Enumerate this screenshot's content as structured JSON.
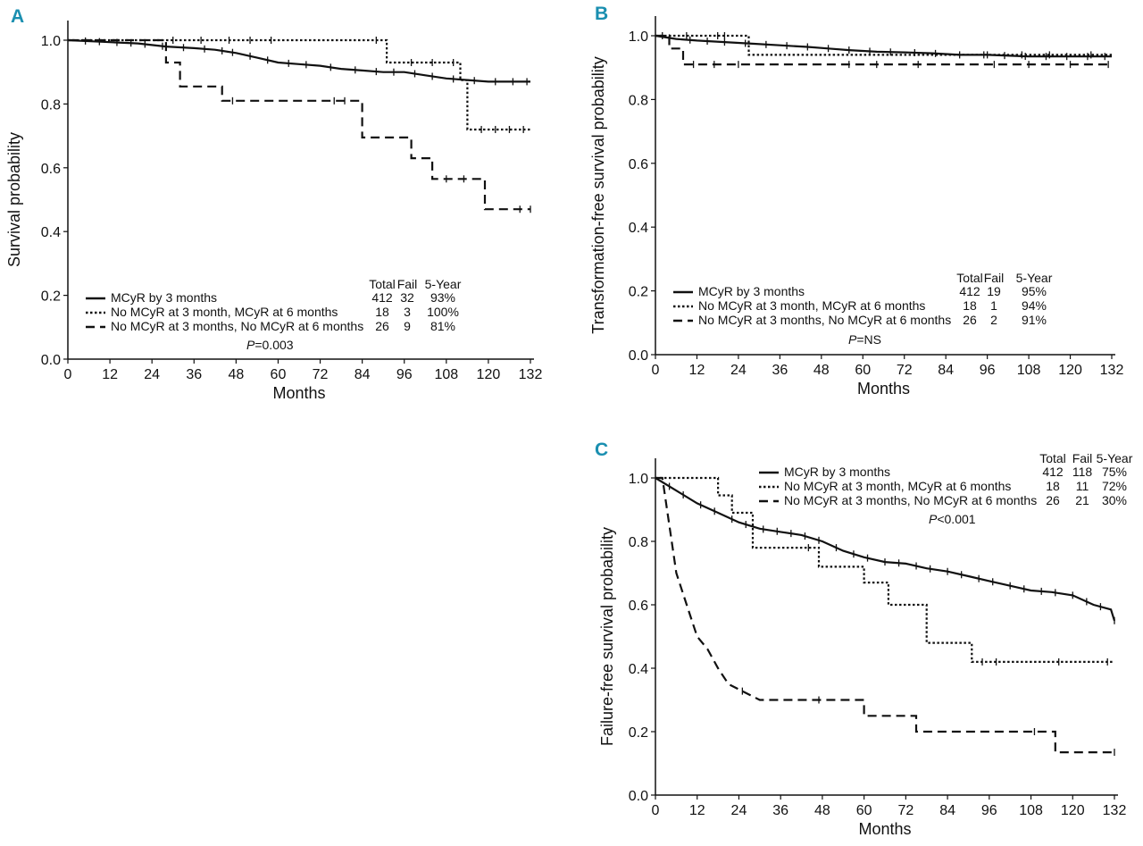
{
  "figure": {
    "panel_color": "#1a8fb0",
    "line_color": "#111111",
    "stats_headers": [
      "Total",
      "Fail",
      "5-Year"
    ]
  },
  "chart_data": [
    {
      "panel": "A",
      "type": "line",
      "title": "",
      "xlabel": "Months",
      "ylabel": "Survival probability",
      "xlim": [
        0,
        132
      ],
      "ylim": [
        0,
        1.0
      ],
      "xticks": [
        0,
        12,
        24,
        36,
        48,
        60,
        72,
        84,
        96,
        108,
        120,
        132
      ],
      "yticks": [
        "0.0",
        "0.2",
        "0.4",
        "0.6",
        "0.8",
        "1.0"
      ],
      "p_value": {
        "prefix": "P",
        "text": "=0.003"
      },
      "series": [
        {
          "name": "MCyR by 3 months",
          "style": "solid",
          "total": "412",
          "fail": "32",
          "five_year": "93%",
          "x": [
            0,
            10,
            20,
            28,
            36,
            42,
            48,
            54,
            60,
            66,
            72,
            78,
            84,
            90,
            96,
            102,
            108,
            114,
            120,
            126,
            132
          ],
          "y": [
            1.0,
            0.995,
            0.99,
            0.98,
            0.975,
            0.97,
            0.96,
            0.945,
            0.93,
            0.925,
            0.92,
            0.91,
            0.905,
            0.9,
            0.9,
            0.89,
            0.88,
            0.875,
            0.87,
            0.87,
            0.87
          ],
          "censor_x": [
            5,
            9,
            14,
            18,
            22,
            27,
            33,
            39,
            44,
            47,
            52,
            57,
            63,
            68,
            75,
            82,
            88,
            93,
            99,
            104,
            110,
            116,
            122,
            127,
            131
          ]
        },
        {
          "name": "No MCyR at 3 month, MCyR at 6 months",
          "style": "dotted",
          "total": "18",
          "fail": "3",
          "five_year": "100%",
          "x": [
            0,
            91,
            91,
            112,
            112,
            114,
            114,
            132
          ],
          "y": [
            1.0,
            1.0,
            0.93,
            0.93,
            0.875,
            0.875,
            0.72,
            0.72
          ],
          "censor_x": [
            30,
            38,
            46,
            52,
            58,
            88,
            98,
            104,
            110,
            118,
            122,
            126,
            130
          ]
        },
        {
          "name": "No MCyR at 3 months, No MCyR at 6 months",
          "style": "dashed",
          "total": "26",
          "fail": "9",
          "five_year": "81%",
          "x": [
            0,
            28,
            28,
            32,
            32,
            44,
            44,
            84,
            84,
            98,
            98,
            104,
            104,
            119,
            119,
            132
          ],
          "y": [
            1.0,
            1.0,
            0.93,
            0.93,
            0.855,
            0.855,
            0.81,
            0.81,
            0.695,
            0.695,
            0.63,
            0.63,
            0.565,
            0.565,
            0.47,
            0.47
          ],
          "censor_x": [
            47,
            76,
            79,
            108,
            113,
            129,
            132
          ]
        }
      ]
    },
    {
      "panel": "B",
      "type": "line",
      "title": "",
      "xlabel": "Months",
      "ylabel": "Transformation-free survival probability",
      "xlim": [
        0,
        132
      ],
      "ylim": [
        0,
        1.0
      ],
      "xticks": [
        0,
        12,
        24,
        36,
        48,
        60,
        72,
        84,
        96,
        108,
        120,
        132
      ],
      "yticks": [
        "0.0",
        "0.2",
        "0.4",
        "0.6",
        "0.8",
        "1.0"
      ],
      "p_value": {
        "prefix": "P",
        "text": "=NS"
      },
      "series": [
        {
          "name": "MCyR by 3 months",
          "style": "solid",
          "total": "412",
          "fail": "19",
          "five_year": "95%",
          "x": [
            0,
            6,
            12,
            20,
            28,
            36,
            44,
            50,
            56,
            64,
            72,
            80,
            88,
            96,
            108,
            120,
            132
          ],
          "y": [
            1.0,
            0.99,
            0.985,
            0.98,
            0.975,
            0.97,
            0.965,
            0.96,
            0.955,
            0.95,
            0.948,
            0.945,
            0.94,
            0.94,
            0.935,
            0.935,
            0.935
          ],
          "censor_x": [
            4,
            10,
            15,
            20,
            26,
            32,
            38,
            44,
            50,
            56,
            62,
            68,
            75,
            81,
            88,
            95,
            101,
            107,
            113,
            119,
            125,
            130
          ]
        },
        {
          "name": "No MCyR at 3 month, MCyR at 6 months",
          "style": "dotted",
          "total": "18",
          "fail": "1",
          "five_year": "94%",
          "x": [
            0,
            27,
            27,
            132
          ],
          "y": [
            1.0,
            1.0,
            0.94,
            0.94
          ],
          "censor_x": [
            9,
            18,
            20,
            96,
            106,
            114,
            126
          ]
        },
        {
          "name": "No MCyR at 3 months, No MCyR at 6 months",
          "style": "dashed",
          "total": "26",
          "fail": "2",
          "five_year": "91%",
          "x": [
            0,
            4,
            4,
            8,
            8,
            132
          ],
          "y": [
            1.0,
            1.0,
            0.96,
            0.96,
            0.91,
            0.91
          ],
          "censor_x": [
            2,
            11,
            17,
            24,
            56,
            64,
            76,
            98,
            108,
            120,
            131
          ]
        }
      ]
    },
    {
      "panel": "C",
      "type": "line",
      "title": "",
      "xlabel": "Months",
      "ylabel": "Failure-free survival probability",
      "xlim": [
        0,
        132
      ],
      "ylim": [
        0,
        1.0
      ],
      "xticks": [
        0,
        12,
        24,
        36,
        48,
        60,
        72,
        84,
        96,
        108,
        120,
        132
      ],
      "yticks": [
        "0.0",
        "0.2",
        "0.4",
        "0.6",
        "0.8",
        "1.0"
      ],
      "p_value": {
        "prefix": "P",
        "text": "<0.001"
      },
      "series": [
        {
          "name": "MCyR by 3 months",
          "style": "solid",
          "total": "412",
          "fail": "118",
          "five_year": "75%",
          "x": [
            0,
            6,
            12,
            18,
            24,
            30,
            36,
            42,
            48,
            54,
            60,
            66,
            72,
            78,
            84,
            90,
            96,
            102,
            108,
            114,
            120,
            126,
            131,
            132
          ],
          "y": [
            1.0,
            0.96,
            0.92,
            0.89,
            0.86,
            0.84,
            0.83,
            0.82,
            0.8,
            0.77,
            0.75,
            0.735,
            0.73,
            0.715,
            0.705,
            0.69,
            0.675,
            0.66,
            0.645,
            0.64,
            0.63,
            0.6,
            0.585,
            0.55
          ],
          "censor_x": [
            4,
            8,
            13,
            17,
            22,
            26,
            31,
            35,
            39,
            43,
            47,
            52,
            57,
            61,
            66,
            70,
            75,
            79,
            84,
            88,
            93,
            97,
            102,
            106,
            111,
            115,
            120,
            124,
            128,
            132
          ]
        },
        {
          "name": "No MCyR at 3 month, MCyR at 6 months",
          "style": "dotted",
          "total": "18",
          "fail": "11",
          "five_year": "72%",
          "x": [
            0,
            18,
            18,
            22,
            22,
            28,
            28,
            36,
            36,
            47,
            47,
            60,
            60,
            67,
            67,
            78,
            78,
            91,
            91,
            132
          ],
          "y": [
            1.0,
            1.0,
            0.945,
            0.945,
            0.89,
            0.89,
            0.78,
            0.78,
            0.78,
            0.78,
            0.72,
            0.72,
            0.67,
            0.67,
            0.6,
            0.6,
            0.48,
            0.48,
            0.42,
            0.42
          ],
          "censor_x": [
            44,
            94,
            98,
            116,
            130
          ]
        },
        {
          "name": "No MCyR at 3 months, No MCyR at 6 months",
          "style": "dashed",
          "total": "26",
          "fail": "21",
          "five_year": "30%",
          "x": [
            0,
            2,
            6,
            9,
            12,
            15,
            18,
            21,
            30,
            60,
            60,
            75,
            75,
            115,
            115,
            132
          ],
          "y": [
            1.0,
            1.0,
            0.7,
            0.6,
            0.5,
            0.46,
            0.4,
            0.35,
            0.3,
            0.3,
            0.25,
            0.25,
            0.2,
            0.2,
            0.135,
            0.135
          ],
          "censor_x": [
            25,
            47,
            109,
            132
          ]
        }
      ]
    }
  ]
}
